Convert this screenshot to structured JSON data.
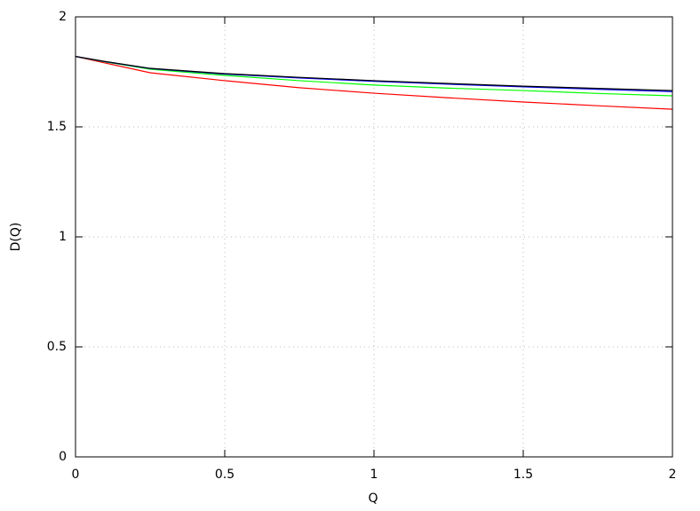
{
  "chart_data": {
    "type": "line",
    "x_label": "Q",
    "y_label": "D(Q)",
    "x": [
      0,
      0.1,
      0.25,
      0.5,
      0.75,
      1,
      1.25,
      1.5,
      1.75,
      2
    ],
    "series": [
      {
        "color": "#ff0000",
        "values": [
          1.82,
          1.79,
          1.746,
          1.71,
          1.678,
          1.653,
          1.632,
          1.613,
          1.596,
          1.58
        ]
      },
      {
        "color": "#00ff00",
        "values": [
          1.82,
          1.795,
          1.762,
          1.734,
          1.71,
          1.69,
          1.676,
          1.665,
          1.652,
          1.641
        ]
      },
      {
        "color": "#0000ff",
        "values": [
          1.82,
          1.796,
          1.765,
          1.74,
          1.722,
          1.707,
          1.694,
          1.682,
          1.671,
          1.66
        ]
      },
      {
        "color": "#000000",
        "values": [
          1.82,
          1.797,
          1.766,
          1.742,
          1.725,
          1.71,
          1.697,
          1.685,
          1.675,
          1.665
        ]
      }
    ],
    "xlim": [
      0,
      2
    ],
    "xticks": [
      0,
      0.5,
      1,
      1.5,
      2
    ],
    "ylim": [
      0,
      2
    ],
    "yticks": [
      0,
      0.5,
      1,
      1.5,
      2
    ],
    "grid": true
  }
}
